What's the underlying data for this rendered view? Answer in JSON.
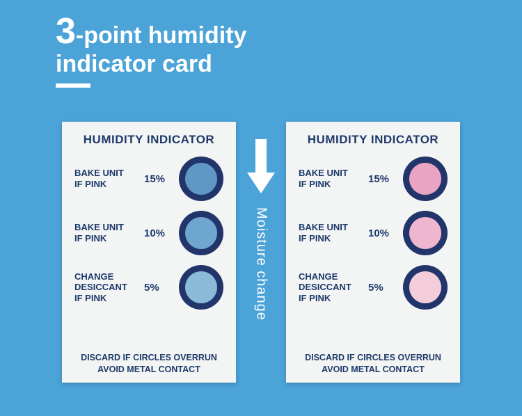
{
  "title": {
    "big": "3",
    "rest": "-point humidity",
    "line2": "indicator card"
  },
  "center": {
    "label": "Moisture change",
    "arrow_color": "#ffffff"
  },
  "card_shared": {
    "title": "HUMIDITY INDICATOR",
    "footer_l1": "DISCARD IF CIRCLES OVERRUN",
    "footer_l2": "AVOID METAL CONTACT",
    "ring_color": "#22356b",
    "ring_outer": 64,
    "ring_thick": 9
  },
  "left_card": {
    "rows": [
      {
        "label_l1": "BAKE UNIT",
        "label_l2": "IF PINK",
        "pct": "15%",
        "dot_color": "#5f97c5"
      },
      {
        "label_l1": "BAKE UNIT",
        "label_l2": "IF PINK",
        "pct": "10%",
        "dot_color": "#6ea6cf"
      },
      {
        "label_l1": "CHANGE",
        "label_l2": "DESICCANT",
        "label_l3": "IF PINK",
        "pct": "5%",
        "dot_color": "#8cbbd9"
      }
    ]
  },
  "right_card": {
    "rows": [
      {
        "label_l1": "BAKE UNIT",
        "label_l2": "IF PINK",
        "pct": "15%",
        "dot_color": "#e9a3c3"
      },
      {
        "label_l1": "BAKE UNIT",
        "label_l2": "IF PINK",
        "pct": "10%",
        "dot_color": "#efb7cf"
      },
      {
        "label_l1": "CHANGE",
        "label_l2": "DESICCANT",
        "label_l3": "IF PINK",
        "pct": "5%",
        "dot_color": "#f3cdda"
      }
    ]
  }
}
